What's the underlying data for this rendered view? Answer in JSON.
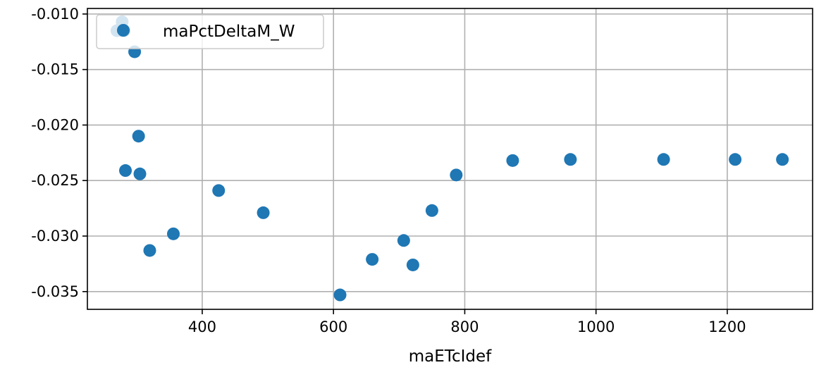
{
  "chart_data": {
    "type": "scatter",
    "title": "",
    "xlabel": "maETcIdef",
    "ylabel": "",
    "xlim": [
      225,
      1330
    ],
    "ylim": [
      -0.0366,
      -0.0095
    ],
    "x_ticks": [
      400,
      600,
      800,
      1000,
      1200
    ],
    "x_tick_labels": [
      "400",
      "600",
      "800",
      "1000",
      "1200"
    ],
    "y_ticks": [
      -0.01,
      -0.015,
      -0.02,
      -0.025,
      -0.03,
      -0.035
    ],
    "y_tick_labels": [
      "-0.010",
      "-0.015",
      "-0.020",
      "-0.025",
      "-0.030",
      "-0.035"
    ],
    "grid": true,
    "legend_position": "top-left",
    "series": [
      {
        "name": "maPctDeltaM_W",
        "color": "#1f77b4",
        "points": [
          {
            "x": 270,
            "y": -0.0115
          },
          {
            "x": 277,
            "y": -0.0115
          },
          {
            "x": 281,
            "y": -0.0115
          },
          {
            "x": 278,
            "y": -0.0107
          },
          {
            "x": 297,
            "y": -0.0134
          },
          {
            "x": 303,
            "y": -0.021
          },
          {
            "x": 283,
            "y": -0.0241
          },
          {
            "x": 305,
            "y": -0.0244
          },
          {
            "x": 320,
            "y": -0.0313
          },
          {
            "x": 356,
            "y": -0.0298
          },
          {
            "x": 425,
            "y": -0.0259
          },
          {
            "x": 493,
            "y": -0.0279
          },
          {
            "x": 610,
            "y": -0.0353
          },
          {
            "x": 659,
            "y": -0.0321
          },
          {
            "x": 707,
            "y": -0.0304
          },
          {
            "x": 721,
            "y": -0.0326
          },
          {
            "x": 750,
            "y": -0.0277
          },
          {
            "x": 787,
            "y": -0.0245
          },
          {
            "x": 873,
            "y": -0.0232
          },
          {
            "x": 961,
            "y": -0.0231
          },
          {
            "x": 1103,
            "y": -0.0231
          },
          {
            "x": 1212,
            "y": -0.0231
          },
          {
            "x": 1284,
            "y": -0.0231
          }
        ]
      }
    ]
  }
}
